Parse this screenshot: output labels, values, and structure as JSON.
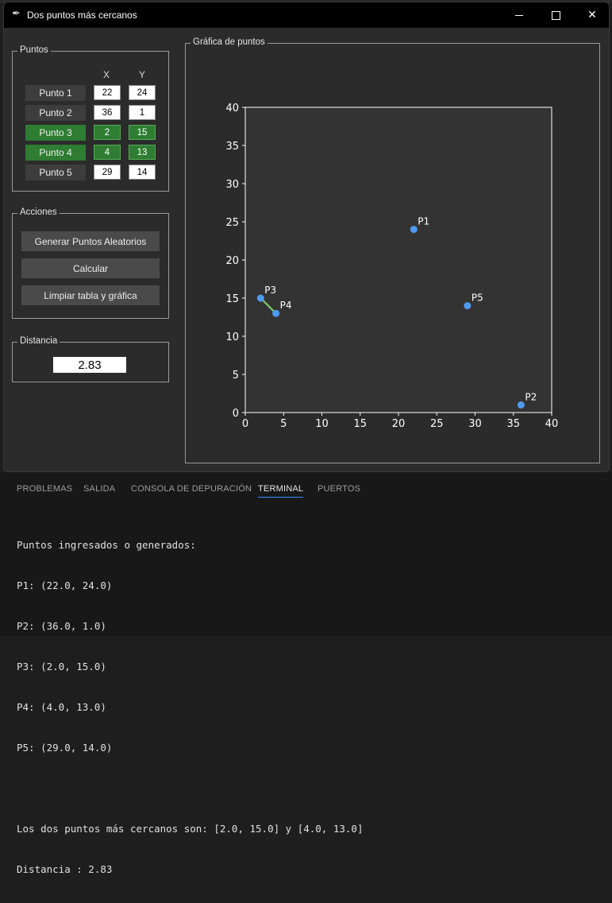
{
  "window": {
    "title": "Dos puntos más cercanos",
    "icon": "feather-icon"
  },
  "puntos": {
    "legend": "Puntos",
    "col_x": "X",
    "col_y": "Y",
    "rows": [
      {
        "label": "Punto 1",
        "x": "22",
        "y": "24",
        "selected": false
      },
      {
        "label": "Punto 2",
        "x": "36",
        "y": "1",
        "selected": false
      },
      {
        "label": "Punto 3",
        "x": "2",
        "y": "15",
        "selected": true
      },
      {
        "label": "Punto 4",
        "x": "4",
        "y": "13",
        "selected": true
      },
      {
        "label": "Punto 5",
        "x": "29",
        "y": "14",
        "selected": false
      }
    ]
  },
  "acciones": {
    "legend": "Acciones",
    "generate_label": "Generar Puntos Aleatorios",
    "calculate_label": "Calcular",
    "clear_label": "Limpiar tabla y gráfica"
  },
  "distancia": {
    "legend": "Distancia",
    "value": "2.83"
  },
  "grafica": {
    "legend": "Gráfica de puntos"
  },
  "chart_data": {
    "type": "scatter",
    "title": "",
    "xlabel": "",
    "ylabel": "",
    "xlim": [
      0,
      40
    ],
    "ylim": [
      0,
      40
    ],
    "xticks": [
      "0",
      "5",
      "10",
      "15",
      "20",
      "25",
      "30",
      "35",
      "40"
    ],
    "yticks": [
      "0",
      "5",
      "10",
      "15",
      "20",
      "25",
      "30",
      "35",
      "40"
    ],
    "grid": false,
    "points": [
      {
        "label": "P1",
        "x": 22,
        "y": 24
      },
      {
        "label": "P2",
        "x": 36,
        "y": 1
      },
      {
        "label": "P3",
        "x": 2,
        "y": 15
      },
      {
        "label": "P4",
        "x": 4,
        "y": 13
      },
      {
        "label": "P5",
        "x": 29,
        "y": 14
      }
    ],
    "closest_pair_line": {
      "from": [
        2,
        15
      ],
      "to": [
        4,
        13
      ]
    },
    "colors": {
      "point": "#4e9af1",
      "line": "#7ec86b",
      "plot_bg": "#333333"
    }
  },
  "panel": {
    "tabs": [
      {
        "label": "PROBLEMAS",
        "active": false
      },
      {
        "label": "SALIDA",
        "active": false
      },
      {
        "label": "CONSOLA DE DEPURACIÓN",
        "active": false
      },
      {
        "label": "TERMINAL",
        "active": true
      },
      {
        "label": "PUERTOS",
        "active": false
      }
    ],
    "terminal_lines": [
      "Puntos ingresados o generados:",
      "P1: (22.0, 24.0)",
      "P2: (36.0, 1.0)",
      "P3: (2.0, 15.0)",
      "P4: (4.0, 13.0)",
      "P5: (29.0, 14.0)",
      "",
      "Los dos puntos más cercanos son: [2.0, 15.0] y [4.0, 13.0]",
      "Distancia : 2.83"
    ]
  }
}
